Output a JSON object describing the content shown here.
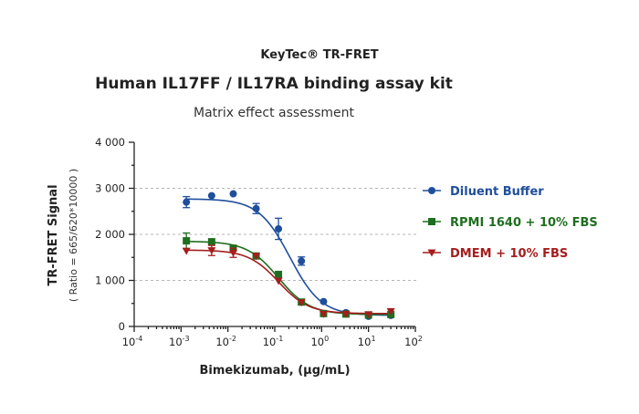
{
  "brand": "KeyTec® TR-FRET",
  "chart_data": {
    "type": "scatter",
    "title": "Human IL17FF / IL17RA binding assay kit",
    "subtitle": "Matrix effect assessment",
    "xlabel": "Bimekizumab, (μg/mL)",
    "ylabel": "TR-FRET Signal",
    "ylabel_sub": "( Ratio = 665/620*10000 )",
    "x_scale": "log",
    "xlim": [
      0.0001,
      100
    ],
    "ylim": [
      0,
      4000
    ],
    "x_tick_values": [
      0.0001,
      0.001,
      0.01,
      0.1,
      1,
      10,
      100
    ],
    "x_tick_labels": [
      {
        "base": "10",
        "exp": "-4"
      },
      {
        "base": "10",
        "exp": "-3"
      },
      {
        "base": "10",
        "exp": "-2"
      },
      {
        "base": "10",
        "exp": "-1"
      },
      {
        "base": "10",
        "exp": "0"
      },
      {
        "base": "10",
        "exp": "1"
      },
      {
        "base": "10",
        "exp": "2"
      }
    ],
    "y_tick_values": [
      0,
      1000,
      2000,
      3000,
      4000
    ],
    "y_tick_labels": [
      "0",
      "1 000",
      "2 000",
      "3 000",
      "4 000"
    ],
    "grid": "horizontal dashed at 1000, 2000, 3000",
    "legend_position": "right",
    "series": [
      {
        "name": "Diluent Buffer",
        "color": "#1f4e9c",
        "marker": "circle",
        "x": [
          0.0013,
          0.0045,
          0.013,
          0.04,
          0.12,
          0.37,
          1.1,
          3.3,
          10,
          30
        ],
        "y": [
          2700,
          2840,
          2880,
          2560,
          2120,
          1420,
          540,
          300,
          220,
          240
        ],
        "err": [
          120,
          0,
          0,
          110,
          230,
          90,
          0,
          0,
          0,
          0
        ],
        "fit": {
          "top": 2770,
          "bottom": 240,
          "ec50": 0.21,
          "hill": 1.3
        }
      },
      {
        "name": "RPMI 1640 + 10% FBS",
        "color": "#1f6e1f",
        "marker": "square",
        "x": [
          0.0013,
          0.0045,
          0.013,
          0.04,
          0.12,
          0.37,
          1.1,
          3.3,
          10,
          30
        ],
        "y": [
          1860,
          1840,
          1700,
          1530,
          1130,
          530,
          280,
          270,
          250,
          260
        ],
        "err": [
          170,
          0,
          0,
          0,
          0,
          0,
          0,
          0,
          0,
          0
        ],
        "fit": {
          "top": 1850,
          "bottom": 260,
          "ec50": 0.12,
          "hill": 1.3
        }
      },
      {
        "name": "DMEM + 10% FBS",
        "color": "#a51d1d",
        "marker": "triangle-down",
        "x": [
          0.0013,
          0.0045,
          0.013,
          0.04,
          0.12,
          0.37,
          1.1,
          3.3,
          10,
          30
        ],
        "y": [
          1640,
          1650,
          1600,
          1530,
          990,
          520,
          270,
          270,
          260,
          330
        ],
        "err": [
          0,
          110,
          100,
          0,
          0,
          0,
          0,
          0,
          0,
          0
        ],
        "fit": {
          "top": 1660,
          "bottom": 280,
          "ec50": 0.12,
          "hill": 1.35
        }
      }
    ]
  }
}
